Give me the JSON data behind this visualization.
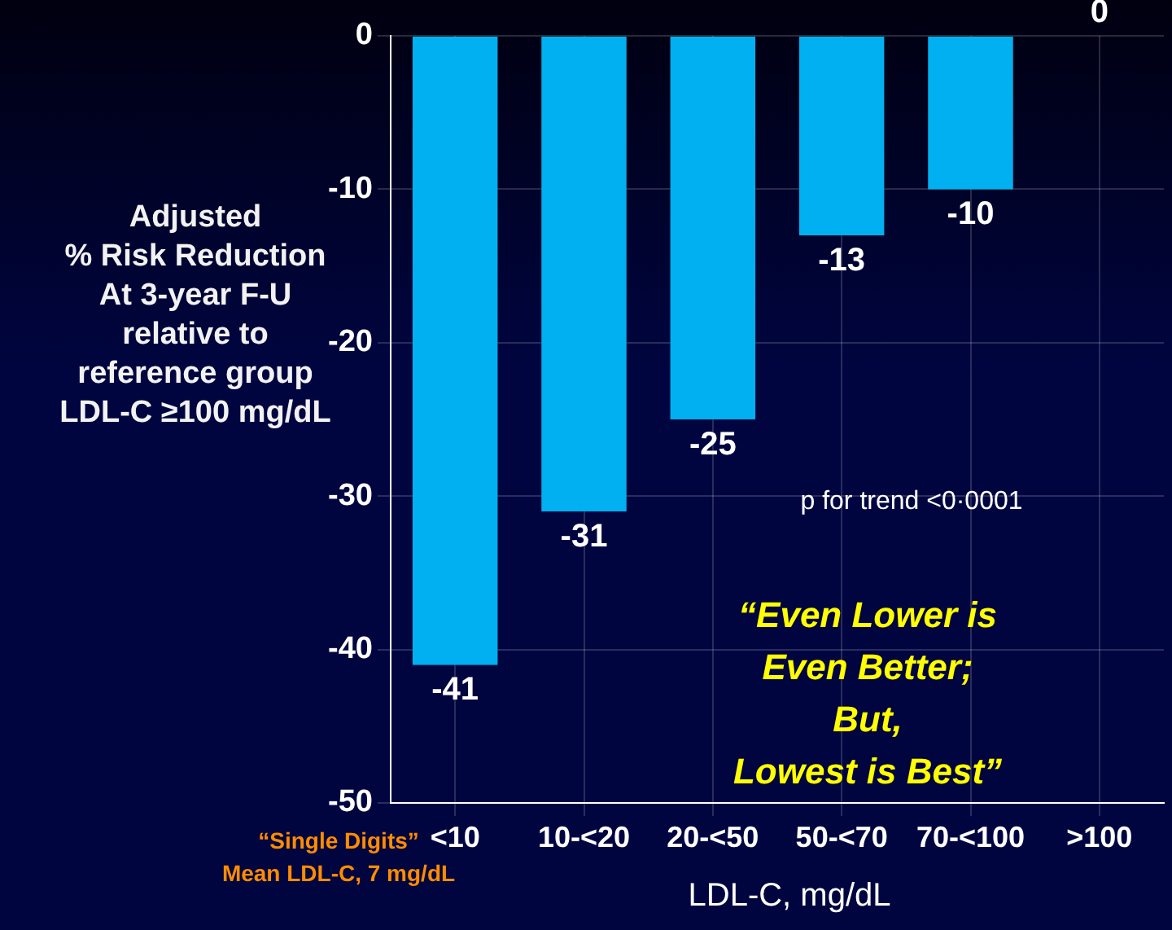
{
  "chart_data": {
    "type": "bar",
    "ylabel": "Adjusted\n% Risk Reduction\nAt 3-year F-U\nrelative to\nreference group\nLDL-C ≥100 mg/dL",
    "xlabel": "LDL-C, mg/dL",
    "categories": [
      "<10",
      "10-<20",
      "20-<50",
      "50-<70",
      "70-<100",
      ">100"
    ],
    "values": [
      -41,
      -31,
      -25,
      -13,
      -10,
      0
    ],
    "color": "#00b0f0",
    "ylim": [
      -50,
      0
    ],
    "yticks": [
      -50,
      -40,
      -30,
      -20,
      -10,
      0
    ],
    "grid": true,
    "data_labels": true,
    "legend": false,
    "annotations": [
      "p for trend <0·0001",
      "“Even Lower is\nEven Better;\nBut,\nLowest is Best”",
      "“Single Digits”\nMean LDL-C, 7 mg/dL"
    ]
  }
}
